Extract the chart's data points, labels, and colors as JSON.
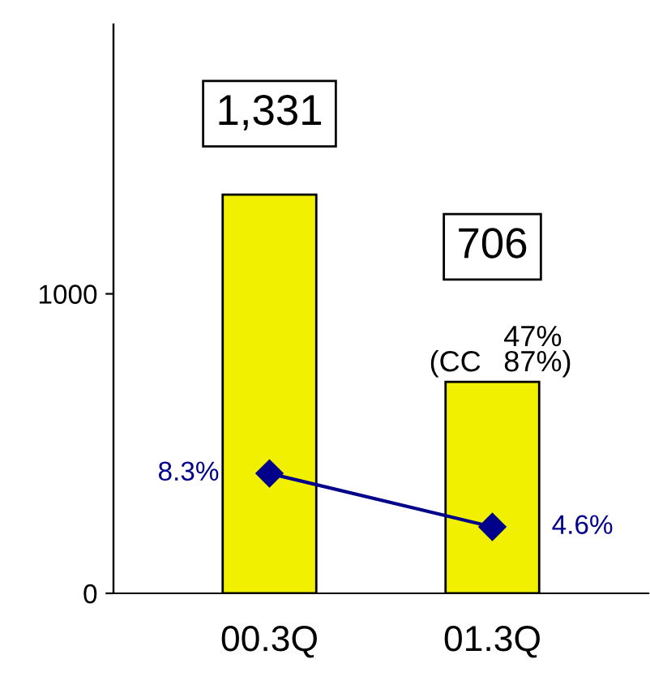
{
  "chart_data": {
    "type": "bar",
    "categories": [
      "00.3Q",
      "01.3Q"
    ],
    "series": [
      {
        "color": "#f0f000",
        "values": [
          1331,
          706
        ],
        "value_labels": [
          "1,331",
          "706"
        ]
      },
      {
        "type": "line",
        "axis": "y2",
        "color": "#00008b",
        "values": [
          8.3,
          4.6
        ],
        "value_labels": [
          "8.3%",
          "4.6%"
        ],
        "marker": "diamond"
      }
    ],
    "ylim": [
      0,
      1900
    ],
    "yticks": [
      0,
      1000
    ],
    "y2lim": [
      0,
      39.4
    ],
    "annotations": [
      "(CC",
      "47%\n87%)"
    ],
    "grid": false
  }
}
